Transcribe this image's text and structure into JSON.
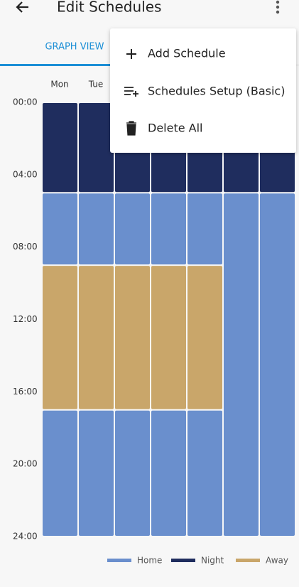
{
  "header": {
    "title": "Edit Schedules"
  },
  "tabs": [
    "GRAPH VIEW"
  ],
  "menu": [
    "Add Schedule",
    "Schedules Setup (Basic)",
    "Delete All"
  ],
  "schedule": {
    "days": [
      "Mon",
      "Tue",
      null,
      null,
      null,
      null,
      null
    ],
    "ylim": [
      0,
      24
    ],
    "yticks": [
      {
        "value": 0,
        "label": "00:00"
      },
      {
        "value": 4,
        "label": "04:00"
      },
      {
        "value": 8,
        "label": "08:00"
      },
      {
        "value": 12,
        "label": "12:00"
      },
      {
        "value": 16,
        "label": "16:00"
      },
      {
        "value": 20,
        "label": "20:00"
      },
      {
        "value": 24,
        "label": "24:00"
      }
    ],
    "modes": [
      {
        "name": "Home",
        "color": "#6a8fcd"
      },
      {
        "name": "Night",
        "color": "#1f2d5e"
      },
      {
        "name": "Away",
        "color": "#c9a66a"
      }
    ],
    "blocks": [
      [
        {
          "mode": 1,
          "start": 0,
          "end": 5
        },
        {
          "mode": 0,
          "start": 5,
          "end": 9
        },
        {
          "mode": 2,
          "start": 9,
          "end": 17
        },
        {
          "mode": 0,
          "start": 17,
          "end": 24
        }
      ],
      [
        {
          "mode": 1,
          "start": 0,
          "end": 5
        },
        {
          "mode": 0,
          "start": 5,
          "end": 9
        },
        {
          "mode": 2,
          "start": 9,
          "end": 17
        },
        {
          "mode": 0,
          "start": 17,
          "end": 24
        }
      ],
      [
        {
          "mode": 1,
          "start": 0,
          "end": 5
        },
        {
          "mode": 0,
          "start": 5,
          "end": 9
        },
        {
          "mode": 2,
          "start": 9,
          "end": 17
        },
        {
          "mode": 0,
          "start": 17,
          "end": 24
        }
      ],
      [
        {
          "mode": 1,
          "start": 0,
          "end": 5
        },
        {
          "mode": 0,
          "start": 5,
          "end": 9
        },
        {
          "mode": 2,
          "start": 9,
          "end": 17
        },
        {
          "mode": 0,
          "start": 17,
          "end": 24
        }
      ],
      [
        {
          "mode": 1,
          "start": 0,
          "end": 5
        },
        {
          "mode": 0,
          "start": 5,
          "end": 9
        },
        {
          "mode": 2,
          "start": 9,
          "end": 17
        },
        {
          "mode": 0,
          "start": 17,
          "end": 24
        }
      ],
      [
        {
          "mode": 1,
          "start": 0,
          "end": 5
        },
        {
          "mode": 0,
          "start": 5,
          "end": 24
        }
      ],
      [
        {
          "mode": 1,
          "start": 0,
          "end": 5
        },
        {
          "mode": 0,
          "start": 5,
          "end": 24
        }
      ]
    ]
  }
}
